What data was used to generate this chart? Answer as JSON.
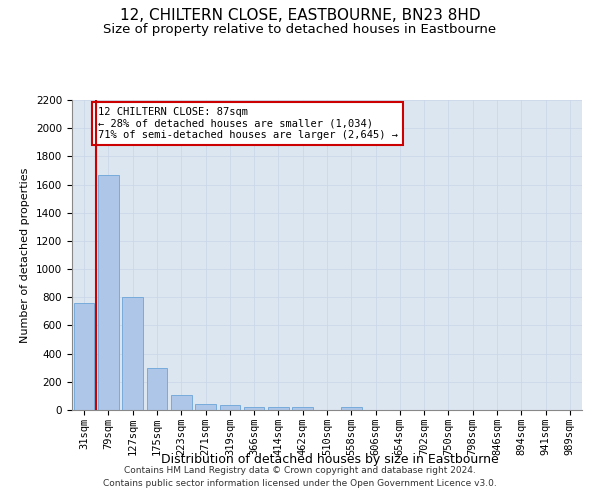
{
  "title": "12, CHILTERN CLOSE, EASTBOURNE, BN23 8HD",
  "subtitle": "Size of property relative to detached houses in Eastbourne",
  "xlabel": "Distribution of detached houses by size in Eastbourne",
  "ylabel": "Number of detached properties",
  "categories": [
    "31sqm",
    "79sqm",
    "127sqm",
    "175sqm",
    "223sqm",
    "271sqm",
    "319sqm",
    "366sqm",
    "414sqm",
    "462sqm",
    "510sqm",
    "558sqm",
    "606sqm",
    "654sqm",
    "702sqm",
    "750sqm",
    "798sqm",
    "846sqm",
    "894sqm",
    "941sqm",
    "989sqm"
  ],
  "values": [
    760,
    1670,
    800,
    295,
    110,
    40,
    32,
    22,
    18,
    18,
    0,
    22,
    0,
    0,
    0,
    0,
    0,
    0,
    0,
    0,
    0
  ],
  "bar_color": "#aec6e8",
  "bar_edge_color": "#5b9bd5",
  "grid_color": "#c8d4e8",
  "background_color": "#dce6f1",
  "vline_x": 0.5,
  "vline_color": "#cc0000",
  "annotation_text": "12 CHILTERN CLOSE: 87sqm\n← 28% of detached houses are smaller (1,034)\n71% of semi-detached houses are larger (2,645) →",
  "annotation_box_color": "#ffffff",
  "annotation_box_edge": "#cc0000",
  "ylim": [
    0,
    2200
  ],
  "yticks": [
    0,
    200,
    400,
    600,
    800,
    1000,
    1200,
    1400,
    1600,
    1800,
    2000,
    2200
  ],
  "footer": "Contains HM Land Registry data © Crown copyright and database right 2024.\nContains public sector information licensed under the Open Government Licence v3.0.",
  "title_fontsize": 11,
  "subtitle_fontsize": 9.5,
  "xlabel_fontsize": 9,
  "ylabel_fontsize": 8,
  "tick_fontsize": 7.5,
  "annotation_fontsize": 7.5,
  "footer_fontsize": 6.5
}
